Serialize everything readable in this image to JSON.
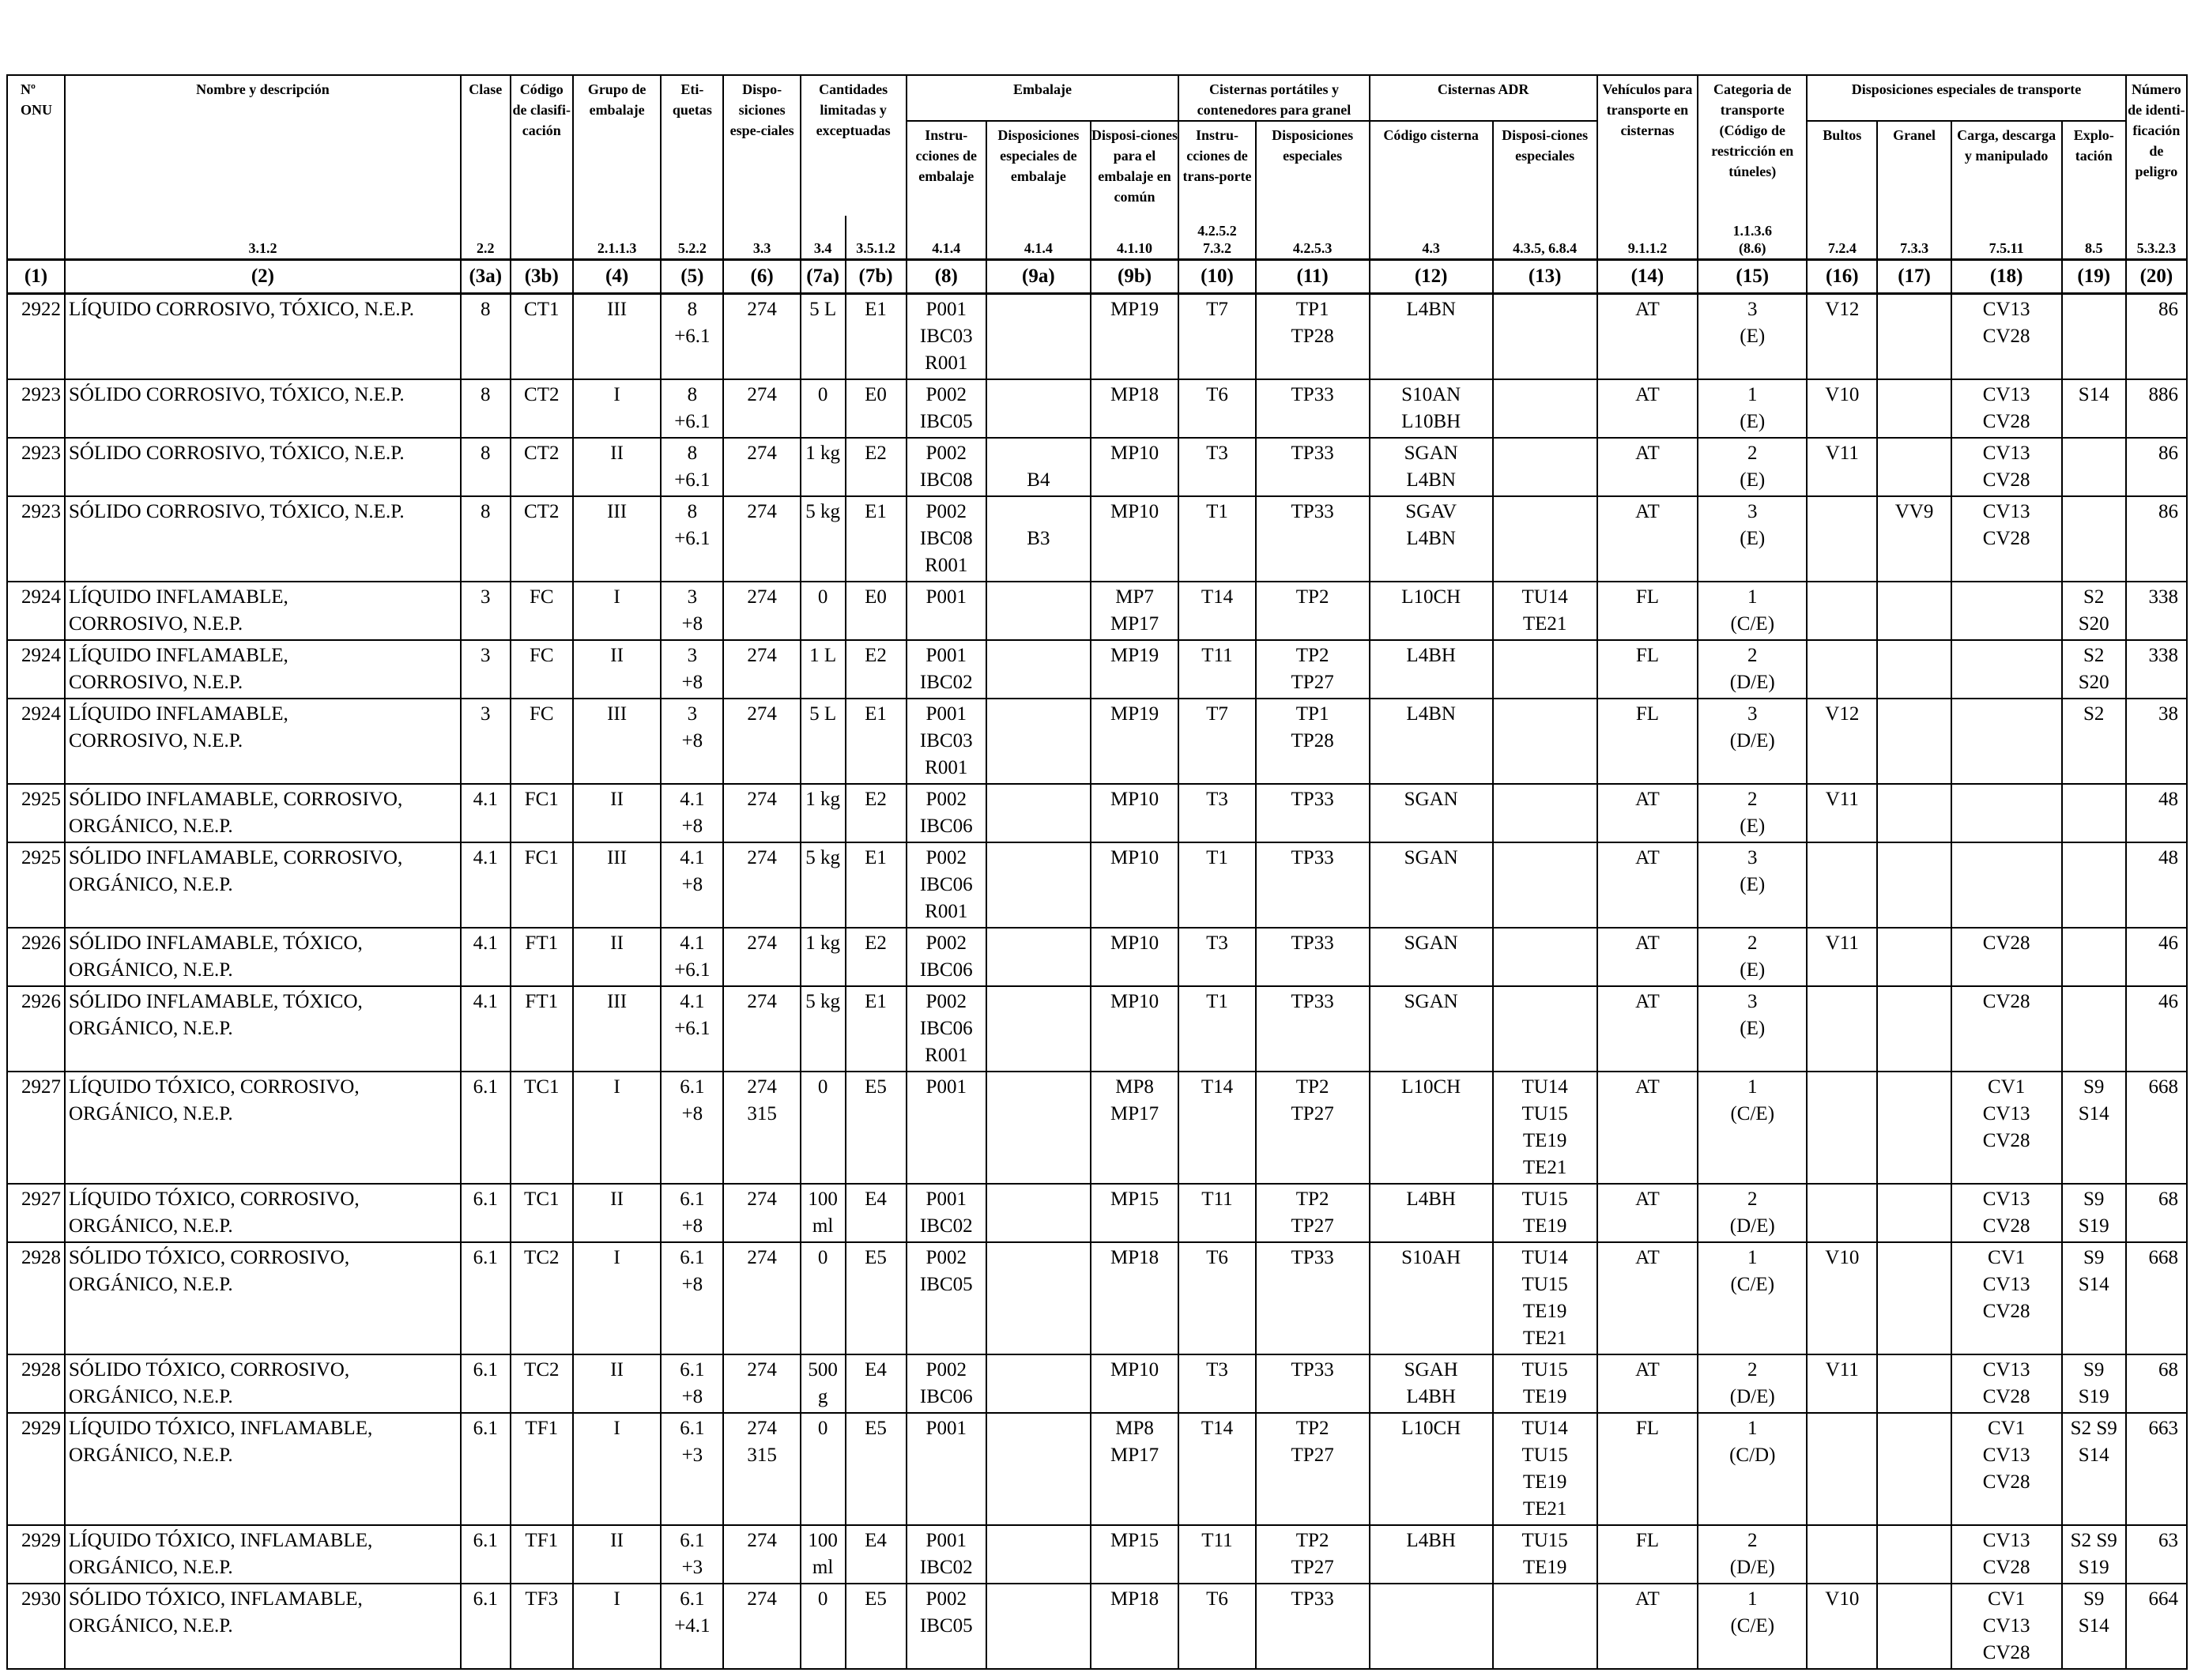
{
  "header": {
    "onu": "Nº ONU",
    "nombre": "Nombre y descripción",
    "clase": "Clase",
    "codigo_clasificacion": "Código de clasifi-cación",
    "grupo_embalaje": "Grupo de embalaje",
    "etiquetas": "Eti-quetas",
    "disposiciones_especiales": "Dispo-siciones espe-ciales",
    "cantidades": "Cantidades limitadas y exceptuadas",
    "embalaje": "Embalaje",
    "instrucciones_embalaje": "Instru-cciones de embalaje",
    "disp_esp_embalaje": "Disposiciones especiales de embalaje",
    "disp_embalaje_comun": "Disposi-ciones para el embalaje en común",
    "cisternas_portatiles": "Cisternas portátiles y contenedores para granel",
    "instrucciones_transporte": "Instru-cciones de trans-porte",
    "disp_esp_cisternas": "Disposiciones especiales",
    "cisternas_adr": "Cisternas ADR",
    "codigo_cisterna": "Código cisterna",
    "disp_esp_adr": "Disposi-ciones especiales",
    "vehiculos": "Vehículos para transporte en cisternas",
    "categoria_transporte": "Categoria de transporte (Código de restricción en túneles)",
    "disp_esp_transporte": "Disposiciones especiales de transporte",
    "bultos": "Bultos",
    "granel": "Granel",
    "carga": "Carga, descarga y manipulado",
    "explotacion": "Explo-tación",
    "numero_peligro": "Número de identi-ficación de peligro"
  },
  "refs": [
    "",
    "3.1.2",
    "2.2",
    "",
    "2.1.1.3",
    "5.2.2",
    "3.3",
    "3.4",
    "3.5.1.2",
    "4.1.4",
    "4.1.4",
    "4.1.10",
    "4.2.5.2\n7.3.2",
    "4.2.5.3",
    "4.3",
    "4.3.5, 6.8.4",
    "9.1.1.2",
    "1.1.3.6\n(8.6)",
    "7.2.4",
    "7.3.3",
    "7.5.11",
    "8.5",
    "5.3.2.3"
  ],
  "col_numbers": [
    "(1)",
    "(2)",
    "(3a)",
    "(3b)",
    "(4)",
    "(5)",
    "(6)",
    "(7a)",
    "(7b)",
    "(8)",
    "(9a)",
    "(9b)",
    "(10)",
    "(11)",
    "(12)",
    "(13)",
    "(14)",
    "(15)",
    "(16)",
    "(17)",
    "(18)",
    "(19)",
    "(20)"
  ],
  "rows": [
    [
      "2922",
      "LÍQUIDO CORROSIVO, TÓXICO, N.E.P.",
      "8",
      "CT1",
      "III",
      "8\n+6.1",
      "274",
      "5 L",
      "E1",
      "P001\nIBC03\nR001",
      "",
      "MP19",
      "T7",
      "TP1\nTP28",
      "L4BN",
      "",
      "AT",
      "3\n(E)",
      "V12",
      "",
      "CV13\nCV28",
      "",
      "86"
    ],
    [
      "2923",
      "SÓLIDO CORROSIVO, TÓXICO, N.E.P.",
      "8",
      "CT2",
      "I",
      "8\n+6.1",
      "274",
      "0",
      "E0",
      "P002\nIBC05",
      "",
      "MP18",
      "T6",
      "TP33",
      "S10AN\nL10BH",
      "",
      "AT",
      "1\n(E)",
      "V10",
      "",
      "CV13\nCV28",
      "S14",
      "886"
    ],
    [
      "2923",
      "SÓLIDO CORROSIVO, TÓXICO, N.E.P.",
      "8",
      "CT2",
      "II",
      "8\n+6.1",
      "274",
      "1 kg",
      "E2",
      "P002\nIBC08",
      "\nB4",
      "MP10",
      "T3",
      "TP33",
      "SGAN\nL4BN",
      "",
      "AT",
      "2\n(E)",
      "V11",
      "",
      "CV13\nCV28",
      "",
      "86"
    ],
    [
      "2923",
      "SÓLIDO CORROSIVO, TÓXICO, N.E.P.",
      "8",
      "CT2",
      "III",
      "8\n+6.1",
      "274",
      "5 kg",
      "E1",
      "P002\nIBC08\nR001",
      "\nB3",
      "MP10",
      "T1",
      "TP33",
      "SGAV\nL4BN",
      "",
      "AT",
      "3\n(E)",
      "",
      "VV9",
      "CV13\nCV28",
      "",
      "86"
    ],
    [
      "2924",
      "LÍQUIDO INFLAMABLE,\nCORROSIVO, N.E.P.",
      "3",
      "FC",
      "I",
      "3\n+8",
      "274",
      "0",
      "E0",
      "P001",
      "",
      "MP7\nMP17",
      "T14",
      "TP2",
      "L10CH",
      "TU14\nTE21",
      "FL",
      "1\n(C/E)",
      "",
      "",
      "",
      "S2\nS20",
      "338"
    ],
    [
      "2924",
      "LÍQUIDO INFLAMABLE,\nCORROSIVO, N.E.P.",
      "3",
      "FC",
      "II",
      "3\n+8",
      "274",
      "1 L",
      "E2",
      "P001\nIBC02",
      "",
      "MP19",
      "T11",
      "TP2\nTP27",
      "L4BH",
      "",
      "FL",
      "2\n(D/E)",
      "",
      "",
      "",
      "S2\nS20",
      "338"
    ],
    [
      "2924",
      "LÍQUIDO INFLAMABLE,\nCORROSIVO, N.E.P.",
      "3",
      "FC",
      "III",
      "3\n+8",
      "274",
      "5 L",
      "E1",
      "P001\nIBC03\nR001",
      "",
      "MP19",
      "T7",
      "TP1\nTP28",
      "L4BN",
      "",
      "FL",
      "3\n(D/E)",
      "V12",
      "",
      "",
      "S2",
      "38"
    ],
    [
      "2925",
      "SÓLIDO INFLAMABLE, CORROSIVO,\nORGÁNICO, N.E.P.",
      "4.1",
      "FC1",
      "II",
      "4.1\n+8",
      "274",
      "1 kg",
      "E2",
      "P002\nIBC06",
      "",
      "MP10",
      "T3",
      "TP33",
      "SGAN",
      "",
      "AT",
      "2\n(E)",
      "V11",
      "",
      "",
      "",
      "48"
    ],
    [
      "2925",
      "SÓLIDO INFLAMABLE, CORROSIVO,\nORGÁNICO, N.E.P.",
      "4.1",
      "FC1",
      "III",
      "4.1\n+8",
      "274",
      "5 kg",
      "E1",
      "P002\nIBC06\nR001",
      "",
      "MP10",
      "T1",
      "TP33",
      "SGAN",
      "",
      "AT",
      "3\n(E)",
      "",
      "",
      "",
      "",
      "48"
    ],
    [
      "2926",
      "SÓLIDO INFLAMABLE, TÓXICO,\nORGÁNICO, N.E.P.",
      "4.1",
      "FT1",
      "II",
      "4.1\n+6.1",
      "274",
      "1 kg",
      "E2",
      "P002\nIBC06",
      "",
      "MP10",
      "T3",
      "TP33",
      "SGAN",
      "",
      "AT",
      "2\n(E)",
      "V11",
      "",
      "CV28",
      "",
      "46"
    ],
    [
      "2926",
      "SÓLIDO INFLAMABLE, TÓXICO,\nORGÁNICO, N.E.P.",
      "4.1",
      "FT1",
      "III",
      "4.1\n+6.1",
      "274",
      "5 kg",
      "E1",
      "P002\nIBC06\nR001",
      "",
      "MP10",
      "T1",
      "TP33",
      "SGAN",
      "",
      "AT",
      "3\n(E)",
      "",
      "",
      "CV28",
      "",
      "46"
    ],
    [
      "2927",
      "LÍQUIDO TÓXICO, CORROSIVO,\nORGÁNICO, N.E.P.",
      "6.1",
      "TC1",
      "I",
      "6.1\n+8",
      "274\n315",
      "0",
      "E5",
      "P001",
      "",
      "MP8\nMP17",
      "T14",
      "TP2\nTP27",
      "L10CH",
      "TU14\nTU15\nTE19\nTE21",
      "AT",
      "1\n(C/E)",
      "",
      "",
      "CV1\nCV13\nCV28",
      "S9\nS14",
      "668"
    ],
    [
      "2927",
      "LÍQUIDO TÓXICO, CORROSIVO,\nORGÁNICO, N.E.P.",
      "6.1",
      "TC1",
      "II",
      "6.1\n+8",
      "274",
      "100\nml",
      "E4",
      "P001\nIBC02",
      "",
      "MP15",
      "T11",
      "TP2\nTP27",
      "L4BH",
      "TU15\nTE19",
      "AT",
      "2\n(D/E)",
      "",
      "",
      "CV13\nCV28",
      "S9\nS19",
      "68"
    ],
    [
      "2928",
      "SÓLIDO TÓXICO, CORROSIVO,\nORGÁNICO, N.E.P.",
      "6.1",
      "TC2",
      "I",
      "6.1\n+8",
      "274",
      "0",
      "E5",
      "P002\nIBC05",
      "",
      "MP18",
      "T6",
      "TP33",
      "S10AH",
      "TU14\nTU15\nTE19\nTE21",
      "AT",
      "1\n(C/E)",
      "V10",
      "",
      "CV1\nCV13\nCV28",
      "S9\nS14",
      "668"
    ],
    [
      "2928",
      "SÓLIDO TÓXICO, CORROSIVO,\nORGÁNICO, N.E.P.",
      "6.1",
      "TC2",
      "II",
      "6.1\n+8",
      "274",
      "500\ng",
      "E4",
      "P002\nIBC06",
      "",
      "MP10",
      "T3",
      "TP33",
      "SGAH\nL4BH",
      "TU15\nTE19",
      "AT",
      "2\n(D/E)",
      "V11",
      "",
      "CV13\nCV28",
      "S9\nS19",
      "68"
    ],
    [
      "2929",
      "LÍQUIDO TÓXICO, INFLAMABLE,\nORGÁNICO, N.E.P.",
      "6.1",
      "TF1",
      "I",
      "6.1\n+3",
      "274\n315",
      "0",
      "E5",
      "P001",
      "",
      "MP8\nMP17",
      "T14",
      "TP2\nTP27",
      "L10CH",
      "TU14\nTU15\nTE19\nTE21",
      "FL",
      "1\n(C/D)",
      "",
      "",
      "CV1\nCV13\nCV28",
      "S2 S9\nS14",
      "663"
    ],
    [
      "2929",
      "LÍQUIDO TÓXICO, INFLAMABLE,\nORGÁNICO, N.E.P.",
      "6.1",
      "TF1",
      "II",
      "6.1\n+3",
      "274",
      "100\nml",
      "E4",
      "P001\nIBC02",
      "",
      "MP15",
      "T11",
      "TP2\nTP27",
      "L4BH",
      "TU15\nTE19",
      "FL",
      "2\n(D/E)",
      "",
      "",
      "CV13\nCV28",
      "S2 S9\nS19",
      "63"
    ],
    [
      "2930",
      "SÓLIDO TÓXICO, INFLAMABLE,\nORGÁNICO, N.E.P.",
      "6.1",
      "TF3",
      "I",
      "6.1\n+4.1",
      "274",
      "0",
      "E5",
      "P002\nIBC05",
      "",
      "MP18",
      "T6",
      "TP33",
      "",
      "",
      "AT",
      "1\n(C/E)",
      "V10",
      "",
      "CV1\nCV13\nCV28",
      "S9\nS14",
      "664"
    ]
  ]
}
